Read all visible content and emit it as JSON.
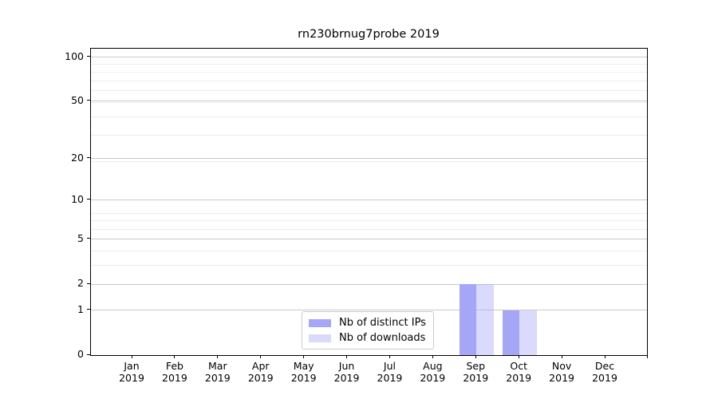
{
  "chart_data": {
    "type": "bar",
    "title": "rn230brnug7probe 2019",
    "categories": [
      "Jan 2019",
      "Feb 2019",
      "Mar 2019",
      "Apr 2019",
      "May 2019",
      "Jun 2019",
      "Jul 2019",
      "Aug 2019",
      "Sep 2019",
      "Oct 2019",
      "Nov 2019",
      "Dec 2019"
    ],
    "x_tick_months": [
      "Jan",
      "Feb",
      "Mar",
      "Apr",
      "May",
      "Jun",
      "Jul",
      "Aug",
      "Sep",
      "Oct",
      "Nov",
      "Dec"
    ],
    "x_tick_year": "2019",
    "series": [
      {
        "name": "Nb of distinct IPs",
        "color": "#a6a6f7",
        "values": [
          0,
          0,
          0,
          0,
          0,
          0,
          0,
          0,
          2,
          1,
          0,
          0
        ]
      },
      {
        "name": "Nb of downloads",
        "color": "rgba(166,166,247,0.42)",
        "values": [
          0,
          0,
          0,
          0,
          0,
          0,
          0,
          0,
          2,
          1,
          0,
          0
        ]
      }
    ],
    "y_scale": "log1p",
    "y_ticks": [
      0,
      1,
      2,
      5,
      10,
      20,
      50,
      100
    ],
    "y_minor_gridlines": [
      3,
      4,
      6,
      7,
      8,
      19,
      29,
      39,
      49,
      59,
      69,
      79,
      89
    ],
    "ylim": [
      0,
      114
    ],
    "xlabel": "",
    "ylabel": "",
    "grid": true,
    "legend_position": "lower center",
    "colors": {
      "major_grid": "#c9c9c9",
      "minor_grid": "#ececec",
      "axis": "#000000",
      "background": "#ffffff"
    }
  }
}
